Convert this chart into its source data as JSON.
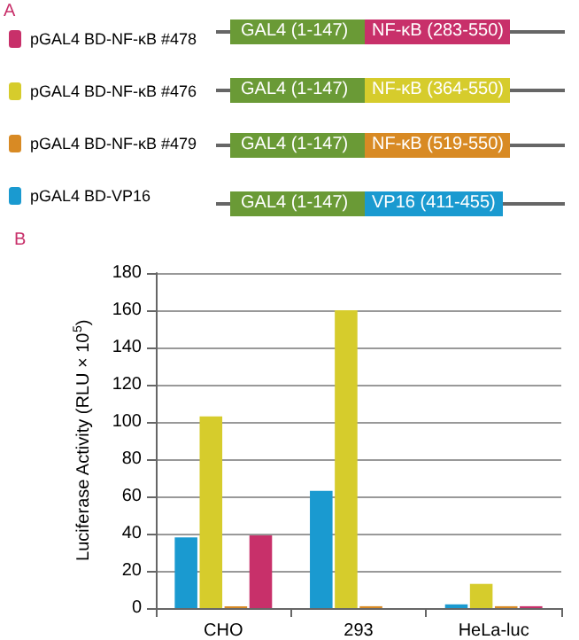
{
  "chart_data": {
    "type": "bar",
    "ylabel": "Luciferase Activity (RLU × 10$^{5}$)",
    "categories": [
      "CHO",
      "293",
      "HeLa-luc"
    ],
    "series": [
      {
        "name": "pGAL4 BD-VP16",
        "color": "#1a9ad0",
        "values": [
          38,
          63,
          2
        ]
      },
      {
        "name": "pGAL4 BD-NF-κB #476",
        "color": "#d6cc2c",
        "values": [
          103,
          160,
          13
        ]
      },
      {
        "name": "pGAL4 BD-NF-κB #479",
        "color": "#d88a24",
        "values": [
          1,
          1,
          1
        ]
      },
      {
        "name": "pGAL4 BD-NF-κB #478",
        "color": "#c8306a",
        "values": [
          39,
          0,
          1
        ]
      }
    ],
    "ylim": [
      0,
      180
    ],
    "yticks": [
      0,
      20,
      40,
      60,
      80,
      100,
      120,
      140,
      160,
      180
    ],
    "grid": "y",
    "legend": "top left",
    "annotations": [
      "A",
      "B",
      "GAL4 (1-147)",
      "NF-κB (283-550)",
      "GAL4 (1-147)",
      "NF-κB (364-550)",
      "GAL4 (1-147)",
      "NF-κB (519-550)",
      "GAL4 (1-147)",
      "VP16 (411-455)"
    ]
  }
}
